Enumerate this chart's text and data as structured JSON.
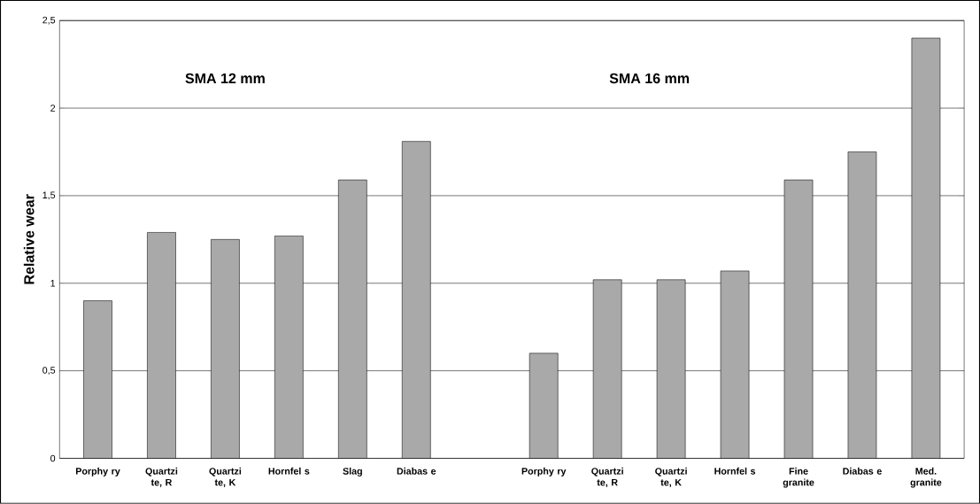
{
  "chart_data": {
    "type": "bar",
    "ylabel": "Relative wear",
    "categories": [
      "Porphy ry",
      "Quartzi te, R",
      "Quartzi te, K",
      "Hornfel s",
      "Slag",
      "Diabas e",
      null,
      "Porphy ry",
      "Quartzi te, R",
      "Quartzi te, K",
      "Hornfel s",
      "Fine granite",
      "Diabas e",
      "Med. granite"
    ],
    "values": [
      0.9,
      1.29,
      1.25,
      1.27,
      1.59,
      1.81,
      null,
      0.6,
      1.02,
      1.02,
      1.07,
      1.59,
      1.75,
      2.4
    ],
    "color": "#a9a9a9",
    "ylim": [
      0,
      2.5
    ],
    "yticks": [
      0,
      {
        "value": 0.5,
        "label": "0,5"
      },
      1,
      {
        "value": 1.5,
        "label": "1,5"
      },
      2,
      {
        "value": 2.5,
        "label": "2,5"
      }
    ],
    "grid": "y",
    "annotations": [
      "SMA 12 mm",
      "SMA 16 mm"
    ]
  }
}
